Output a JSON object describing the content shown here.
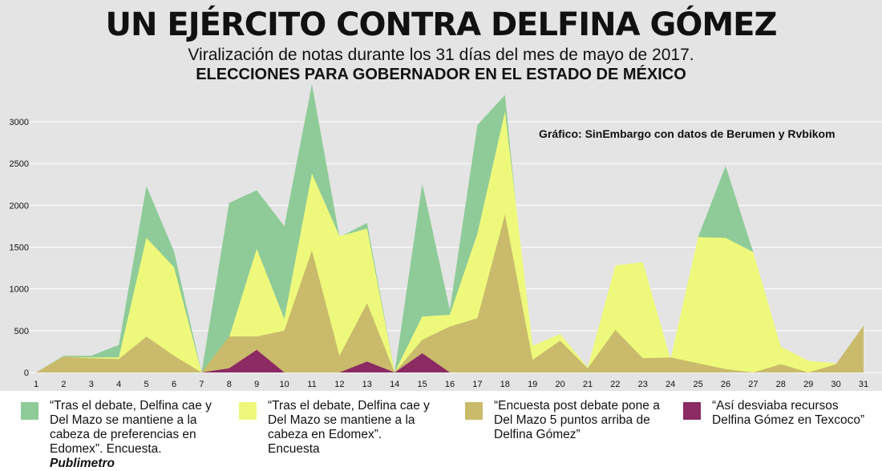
{
  "title": "UN EJÉRCITO CONTRA DELFINA GÓMEZ",
  "subtitle": "Viralización de notas durante los 31 días del mes de mayo de 2017.",
  "subtitle2": "ELECCIONES PARA GOBERNADOR EN EL ESTADO DE MÉXICO",
  "credit": "Gráfico: SinEmbargo con datos de Berumen y Rvbikom",
  "colors": {
    "plot_bg": "#e4e4e4",
    "grid": "#ffffff",
    "green": "#8fcb98",
    "yellow": "#eef97c",
    "tan": "#c9bb6b",
    "purple": "#8b2a63"
  },
  "legend": [
    {
      "color": "#8fcb98",
      "text": "“Tras el debate, Delfina cae y Del Mazo se mantiene a la cabeza de preferencias en Edomex”. Encuesta. ",
      "emph": "Publimetro"
    },
    {
      "color": "#eef97c",
      "text": "“Tras el debate, Delfina cae y Del Mazo se mantiene a la cabeza en Edomex”. Encuesta",
      "emph": ""
    },
    {
      "color": "#c9bb6b",
      "text": "“Encuesta post debate pone a Del Mazo 5 puntos arriba de Delfina Gómez”",
      "emph": ""
    },
    {
      "color": "#8b2a63",
      "text": "“Así desviaba recursos Delfina Gómez en Texcoco”",
      "emph": ""
    }
  ],
  "chart_data": {
    "type": "area",
    "x": [
      1,
      2,
      3,
      4,
      5,
      6,
      7,
      8,
      9,
      10,
      11,
      12,
      13,
      14,
      15,
      16,
      17,
      18,
      19,
      20,
      21,
      22,
      23,
      24,
      25,
      26,
      27,
      28,
      29,
      30,
      31
    ],
    "ylim": [
      0,
      3450
    ],
    "yticks": [
      0,
      500,
      1000,
      1500,
      2000,
      2500,
      3000
    ],
    "grid": true,
    "series": [
      {
        "name": "“Tras el debate, Delfina cae y Del Mazo se mantiene a la cabeza de preferencias en Edomex”. Encuesta. Publimetro",
        "color": "#8fcb98",
        "values": [
          0,
          200,
          200,
          330,
          2230,
          1450,
          0,
          2030,
          2180,
          1750,
          3450,
          1620,
          1790,
          0,
          2260,
          750,
          2960,
          3320,
          0,
          0,
          0,
          0,
          0,
          0,
          1620,
          2470,
          1440,
          0,
          0,
          0,
          0
        ]
      },
      {
        "name": "“Tras el debate, Delfina cae y Del Mazo se mantiene a la cabeza en Edomex”. Encuesta",
        "color": "#eef97c",
        "values": [
          0,
          190,
          180,
          180,
          1610,
          1260,
          0,
          420,
          1480,
          640,
          2380,
          1630,
          1720,
          0,
          670,
          690,
          1660,
          3120,
          320,
          460,
          60,
          1280,
          1320,
          160,
          1620,
          1610,
          1440,
          310,
          140,
          110,
          0
        ]
      },
      {
        "name": "“Encuesta post debate pone a Del Mazo 5 puntos arriba de Delfina Gómez”",
        "color": "#c9bb6b",
        "values": [
          0,
          190,
          170,
          160,
          430,
          200,
          0,
          430,
          430,
          500,
          1460,
          200,
          830,
          0,
          390,
          550,
          650,
          1890,
          150,
          380,
          50,
          510,
          170,
          180,
          110,
          40,
          0,
          100,
          0,
          100,
          560
        ]
      },
      {
        "name": "“Así desviaba recursos Delfina Gómez en Texcoco”",
        "color": "#8b2a63",
        "values": [
          0,
          0,
          0,
          0,
          0,
          0,
          0,
          50,
          270,
          0,
          0,
          0,
          130,
          0,
          230,
          0,
          0,
          0,
          0,
          0,
          0,
          0,
          0,
          0,
          0,
          0,
          0,
          0,
          0,
          0,
          0
        ]
      }
    ]
  }
}
